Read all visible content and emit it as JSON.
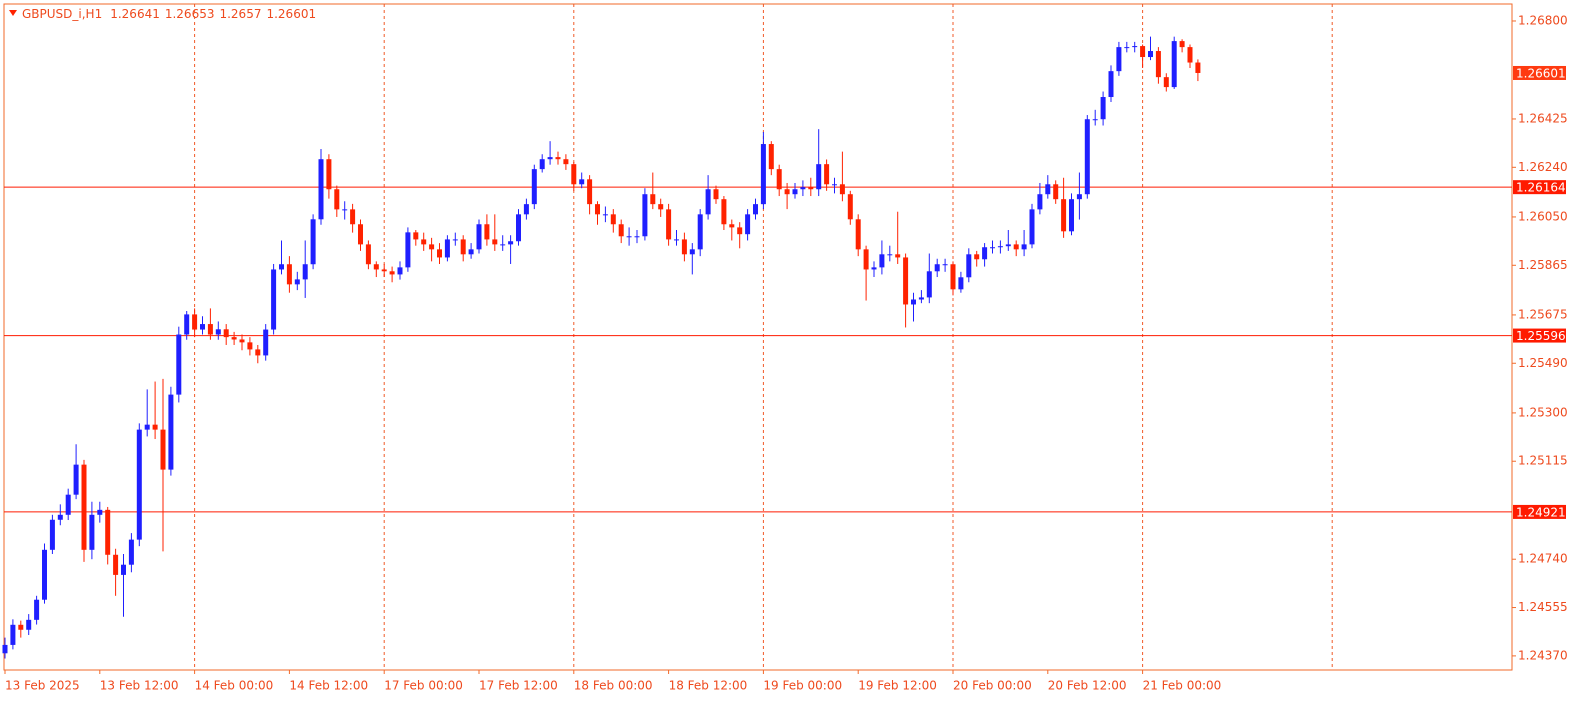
{
  "chart_data": {
    "type": "candlestick",
    "title": "GBPUSD_i,H1",
    "categories": [
      "13 Feb 2025",
      null,
      null,
      null,
      null,
      null,
      null,
      null,
      null,
      null,
      null,
      null,
      "13 Feb 12:00",
      null,
      null,
      null,
      null,
      null,
      null,
      null,
      null,
      null,
      null,
      null,
      "14 Feb 00:00",
      null,
      null,
      null,
      null,
      null,
      null,
      null,
      null,
      null,
      null,
      null,
      "14 Feb 12:00",
      null,
      null,
      null,
      null,
      null,
      null,
      null,
      null,
      null,
      null,
      null,
      "17 Feb 00:00",
      null,
      null,
      null,
      null,
      null,
      null,
      null,
      null,
      null,
      null,
      null,
      "17 Feb 12:00",
      null,
      null,
      null,
      null,
      null,
      null,
      null,
      null,
      null,
      null,
      null,
      "18 Feb 00:00",
      null,
      null,
      null,
      null,
      null,
      null,
      null,
      null,
      null,
      null,
      null,
      "18 Feb 12:00",
      null,
      null,
      null,
      null,
      null,
      null,
      null,
      null,
      null,
      null,
      null,
      "19 Feb 00:00",
      null,
      null,
      null,
      null,
      null,
      null,
      null,
      null,
      null,
      null,
      null,
      "19 Feb 12:00",
      null,
      null,
      null,
      null,
      null,
      null,
      null,
      null,
      null,
      null,
      null,
      "20 Feb 00:00",
      null,
      null,
      null,
      null,
      null,
      null,
      null,
      null,
      null,
      null,
      null,
      "20 Feb 12:00",
      null,
      null,
      null,
      null,
      null,
      null,
      null,
      null,
      null,
      null,
      null,
      "21 Feb 00:00",
      null,
      null,
      null,
      null,
      null,
      null,
      null
    ],
    "open": [
      1.2438,
      1.24412,
      1.24489,
      1.2447,
      1.24508,
      1.24585,
      1.24776,
      1.24891,
      1.2491,
      1.24987,
      1.25102,
      1.24776,
      1.2491,
      1.24929,
      1.24757,
      1.2468,
      1.24719,
      1.24815,
      1.25236,
      1.25255,
      1.25236,
      1.25083,
      1.2537,
      1.256,
      1.25677,
      1.25619,
      1.2564,
      1.256,
      1.2562,
      1.2559,
      1.25581,
      1.2557,
      1.25543,
      1.2552,
      1.25619,
      1.25849,
      1.25869,
      1.25792,
      1.25811,
      1.25869,
      1.26041,
      1.26271,
      1.26156,
      1.26079,
      1.26079,
      1.26022,
      1.25945,
      1.25869,
      1.25849,
      1.25842,
      1.2583,
      1.25857,
      1.25991,
      1.25964,
      1.25945,
      1.25926,
      1.25895,
      1.25964,
      1.25964,
      1.25907,
      1.25926,
      1.26022,
      1.25964,
      1.25945,
      1.25945,
      1.25957,
      1.2606,
      1.26099,
      1.26233,
      1.26271,
      1.26279,
      1.26271,
      1.26252,
      1.26175,
      1.26194,
      1.26099,
      1.2606,
      1.2606,
      1.26022,
      1.25976,
      1.25976,
      1.25976,
      1.26137,
      1.26099,
      1.26079,
      1.25964,
      1.25964,
      1.25907,
      1.25926,
      1.2606,
      1.26156,
      1.26118,
      1.26022,
      1.2601,
      1.25984,
      1.2606,
      1.26099,
      1.26329,
      1.26233,
      1.26156,
      1.26137,
      1.26156,
      1.26164,
      1.26156,
      1.26252,
      1.26175,
      1.26175,
      1.26137,
      1.26041,
      1.25926,
      1.25849,
      1.25857,
      1.25907,
      1.25907,
      1.25895,
      1.25715,
      1.25734,
      1.25742,
      1.25842,
      1.25869,
      1.25869,
      1.25773,
      1.25819,
      1.25907,
      1.25888,
      1.25934,
      1.25934,
      1.25938,
      1.25945,
      1.25926,
      1.25945,
      1.26079,
      1.26137,
      1.26175,
      1.26118,
      1.25995,
      1.26118,
      1.26137,
      1.26424,
      1.26424,
      1.26509,
      1.26608,
      1.267,
      1.267,
      1.26704,
      1.26662,
      1.26685,
      1.26585,
      1.26547,
      1.26723,
      1.267,
      1.26641
    ],
    "high": [
      1.2444,
      1.2451,
      1.24505,
      1.2453,
      1.246,
      1.248,
      1.2491,
      1.2495,
      1.2501,
      1.2518,
      1.2512,
      1.2496,
      1.2496,
      1.2494,
      1.2478,
      1.2476,
      1.2484,
      1.2526,
      1.2539,
      1.2542,
      1.2543,
      1.254,
      1.2563,
      1.2569,
      1.257,
      1.2567,
      1.257,
      1.2565,
      1.2564,
      1.2561,
      1.256,
      1.2559,
      1.2556,
      1.2564,
      1.2587,
      1.2596,
      1.259,
      1.2584,
      1.2596,
      1.2606,
      1.2631,
      1.2629,
      1.2617,
      1.2611,
      1.261,
      1.2604,
      1.2596,
      1.2588,
      1.2587,
      1.2586,
      1.2588,
      1.2601,
      1.26,
      1.2599,
      1.2597,
      1.2595,
      1.2598,
      1.2599,
      1.2598,
      1.2595,
      1.2604,
      1.2606,
      1.2606,
      1.2598,
      1.2598,
      1.2608,
      1.2612,
      1.2625,
      1.2629,
      1.2634,
      1.263,
      1.2629,
      1.2626,
      1.2622,
      1.2621,
      1.2611,
      1.2609,
      1.2608,
      1.2604,
      1.2601,
      1.26,
      1.2616,
      1.2622,
      1.2612,
      1.261,
      1.26,
      1.2599,
      1.2595,
      1.2608,
      1.2621,
      1.2617,
      1.2613,
      1.2604,
      1.2603,
      1.2608,
      1.2612,
      1.26375,
      1.2634,
      1.2625,
      1.2618,
      1.2618,
      1.2619,
      1.262,
      1.26386,
      1.2627,
      1.262,
      1.263,
      1.2615,
      1.2606,
      1.2594,
      1.2588,
      1.2596,
      1.2594,
      1.2607,
      1.2591,
      1.2576,
      1.2577,
      1.2591,
      1.2589,
      1.2589,
      1.2588,
      1.2584,
      1.2593,
      1.2592,
      1.2595,
      1.2596,
      1.2596,
      1.26,
      1.2596,
      1.26,
      1.261,
      1.2618,
      1.2621,
      1.2619,
      1.262,
      1.2614,
      1.2622,
      1.2644,
      1.2646,
      1.2653,
      1.2663,
      1.2672,
      1.2672,
      1.2672,
      1.2671,
      1.2674,
      1.267,
      1.266,
      1.2674,
      1.2673,
      1.2671,
      1.26653
    ],
    "low": [
      1.2436,
      1.24395,
      1.2444,
      1.2445,
      1.2449,
      1.2457,
      1.2476,
      1.2487,
      1.2489,
      1.2497,
      1.2473,
      1.2474,
      1.2488,
      1.2472,
      1.246,
      1.2452,
      1.2469,
      1.2479,
      1.2521,
      1.252,
      1.2477,
      1.2506,
      1.2534,
      1.2558,
      1.2559,
      1.256,
      1.2558,
      1.2558,
      1.2556,
      1.2556,
      1.2554,
      1.2552,
      1.2549,
      1.255,
      1.256,
      1.2583,
      1.2576,
      1.2577,
      1.2574,
      1.2585,
      1.2602,
      1.2612,
      1.2605,
      1.2604,
      1.2599,
      1.2592,
      1.2585,
      1.2582,
      1.2582,
      1.258,
      1.2581,
      1.2584,
      1.2594,
      1.2592,
      1.2588,
      1.2587,
      1.2588,
      1.2594,
      1.2588,
      1.2589,
      1.2591,
      1.2594,
      1.2592,
      1.2592,
      1.2587,
      1.2594,
      1.2604,
      1.2608,
      1.2622,
      1.2625,
      1.2625,
      1.2623,
      1.2615,
      1.2616,
      1.2606,
      1.2602,
      1.2603,
      1.2599,
      1.2595,
      1.2594,
      1.2595,
      1.2596,
      1.2608,
      1.2605,
      1.2594,
      1.2594,
      1.2588,
      1.2583,
      1.259,
      1.2604,
      1.261,
      1.26,
      1.2596,
      1.2593,
      1.2596,
      1.2604,
      1.2608,
      1.2621,
      1.2613,
      1.2608,
      1.2612,
      1.2613,
      1.2613,
      1.2613,
      1.2615,
      1.2614,
      1.2611,
      1.2602,
      1.259,
      1.2573,
      1.2582,
      1.2583,
      1.2588,
      1.2587,
      1.25627,
      1.2565,
      1.2572,
      1.2572,
      1.2582,
      1.2584,
      1.2575,
      1.2576,
      1.258,
      1.2586,
      1.2586,
      1.2591,
      1.2591,
      1.2592,
      1.259,
      1.259,
      1.2593,
      1.2606,
      1.2612,
      1.261,
      1.2597,
      1.2598,
      1.2604,
      1.2612,
      1.264,
      1.264,
      1.2649,
      1.2659,
      1.2668,
      1.2668,
      1.2662,
      1.2665,
      1.2656,
      1.2653,
      1.2654,
      1.2668,
      1.2662,
      1.2657
    ],
    "close": [
      1.24412,
      1.24489,
      1.2447,
      1.24508,
      1.24585,
      1.24776,
      1.24891,
      1.2491,
      1.24987,
      1.25102,
      1.24776,
      1.2491,
      1.24929,
      1.24757,
      1.2468,
      1.24719,
      1.24815,
      1.25236,
      1.25255,
      1.25236,
      1.25083,
      1.2537,
      1.256,
      1.25677,
      1.25619,
      1.2564,
      1.256,
      1.2562,
      1.2559,
      1.25581,
      1.2557,
      1.25543,
      1.2552,
      1.25619,
      1.25849,
      1.25869,
      1.25792,
      1.25811,
      1.25869,
      1.26041,
      1.26271,
      1.26156,
      1.26079,
      1.26079,
      1.26022,
      1.25945,
      1.25869,
      1.25849,
      1.25842,
      1.2583,
      1.25857,
      1.25991,
      1.25964,
      1.25945,
      1.25926,
      1.25895,
      1.25964,
      1.25964,
      1.25907,
      1.25926,
      1.26022,
      1.25964,
      1.25945,
      1.25945,
      1.25957,
      1.2606,
      1.26099,
      1.26233,
      1.26271,
      1.26279,
      1.26271,
      1.26252,
      1.26175,
      1.26194,
      1.26099,
      1.2606,
      1.2606,
      1.26022,
      1.25976,
      1.25976,
      1.25976,
      1.26137,
      1.26099,
      1.26079,
      1.25964,
      1.25964,
      1.25907,
      1.25926,
      1.2606,
      1.26156,
      1.26118,
      1.26022,
      1.2601,
      1.25984,
      1.2606,
      1.26099,
      1.26329,
      1.26233,
      1.26156,
      1.26137,
      1.26156,
      1.26164,
      1.26156,
      1.26252,
      1.26175,
      1.26175,
      1.26137,
      1.26041,
      1.25926,
      1.25849,
      1.25857,
      1.25907,
      1.25907,
      1.25895,
      1.25715,
      1.25734,
      1.25742,
      1.25842,
      1.25869,
      1.25869,
      1.25773,
      1.25819,
      1.25907,
      1.25888,
      1.25934,
      1.25934,
      1.25938,
      1.25945,
      1.25926,
      1.25945,
      1.26079,
      1.26137,
      1.26175,
      1.26118,
      1.25995,
      1.26118,
      1.26137,
      1.26424,
      1.26424,
      1.26509,
      1.26608,
      1.267,
      1.267,
      1.26704,
      1.26662,
      1.26685,
      1.26585,
      1.26547,
      1.26723,
      1.267,
      1.26641,
      1.26601
    ],
    "up_color": "#1f1fff",
    "down_color": "#ff2200",
    "ylim": [
      1.24316,
      1.26865
    ],
    "yticks": [
      {
        "value": 1.268,
        "label": "1.26800"
      },
      1.26425,
      {
        "value": 1.2624,
        "label": "1.26240"
      },
      {
        "value": 1.2605,
        "label": "1.26050"
      },
      1.25865,
      1.25675,
      {
        "value": 1.2549,
        "label": "1.25490"
      },
      {
        "value": 1.253,
        "label": "1.25300"
      },
      1.25115,
      {
        "value": 1.2474,
        "label": "1.24740"
      },
      1.24555,
      {
        "value": 1.2437,
        "label": "1.24370"
      }
    ],
    "hlines": [
      1.26164,
      1.25596,
      1.24921
    ],
    "hline_color": "#ff1a00"
  }
}
